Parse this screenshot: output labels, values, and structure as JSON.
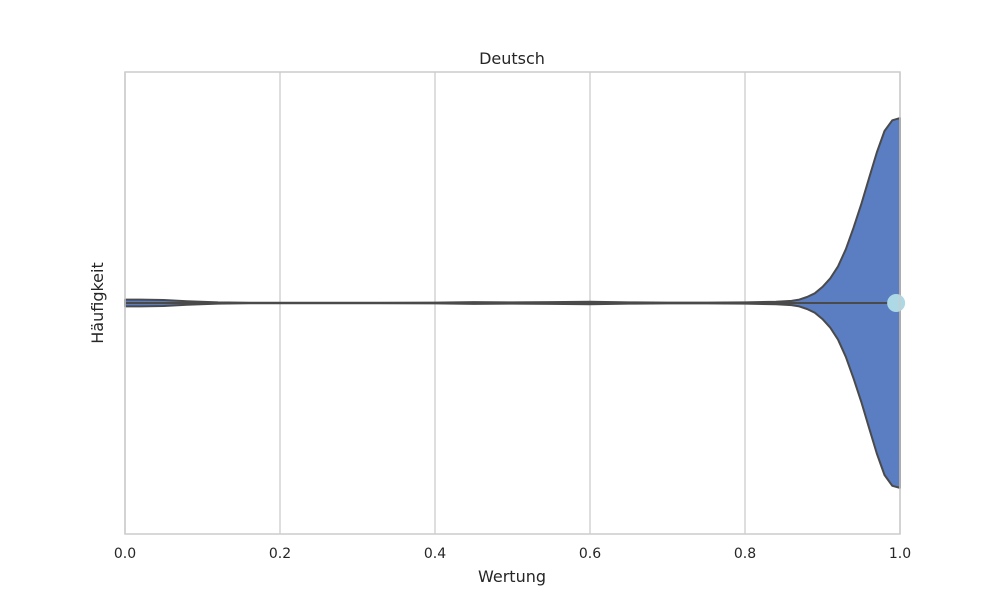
{
  "chart_data": {
    "type": "violin",
    "title": "Deutsch",
    "xlabel": "Wertung",
    "ylabel": "Häufigkeit",
    "xlim": [
      0.0,
      1.0
    ],
    "xticks": [
      "0.0",
      "0.2",
      "0.4",
      "0.6",
      "0.8",
      "1.0"
    ],
    "grid": true,
    "orientation": "horizontal",
    "density_profile": {
      "x": [
        0.0,
        0.02,
        0.05,
        0.08,
        0.12,
        0.16,
        0.2,
        0.3,
        0.4,
        0.45,
        0.5,
        0.55,
        0.6,
        0.65,
        0.7,
        0.75,
        0.8,
        0.84,
        0.86,
        0.87,
        0.88,
        0.89,
        0.9,
        0.91,
        0.92,
        0.93,
        0.94,
        0.95,
        0.96,
        0.97,
        0.98,
        0.99,
        1.0
      ],
      "half_width": [
        0.016,
        0.016,
        0.014,
        0.008,
        0.003,
        0.001,
        0.001,
        0.001,
        0.002,
        0.004,
        0.003,
        0.004,
        0.006,
        0.003,
        0.002,
        0.002,
        0.003,
        0.006,
        0.01,
        0.016,
        0.028,
        0.045,
        0.075,
        0.115,
        0.17,
        0.25,
        0.35,
        0.46,
        0.58,
        0.7,
        0.8,
        0.85,
        0.86
      ]
    },
    "median": 0.995,
    "colors": {
      "violin_fill": "#5b7dc2",
      "violin_edge": "#4a4a4a",
      "median_marker": "#add8e6",
      "grid": "#d3d3d3",
      "axes_edge": "#cccccc"
    }
  }
}
